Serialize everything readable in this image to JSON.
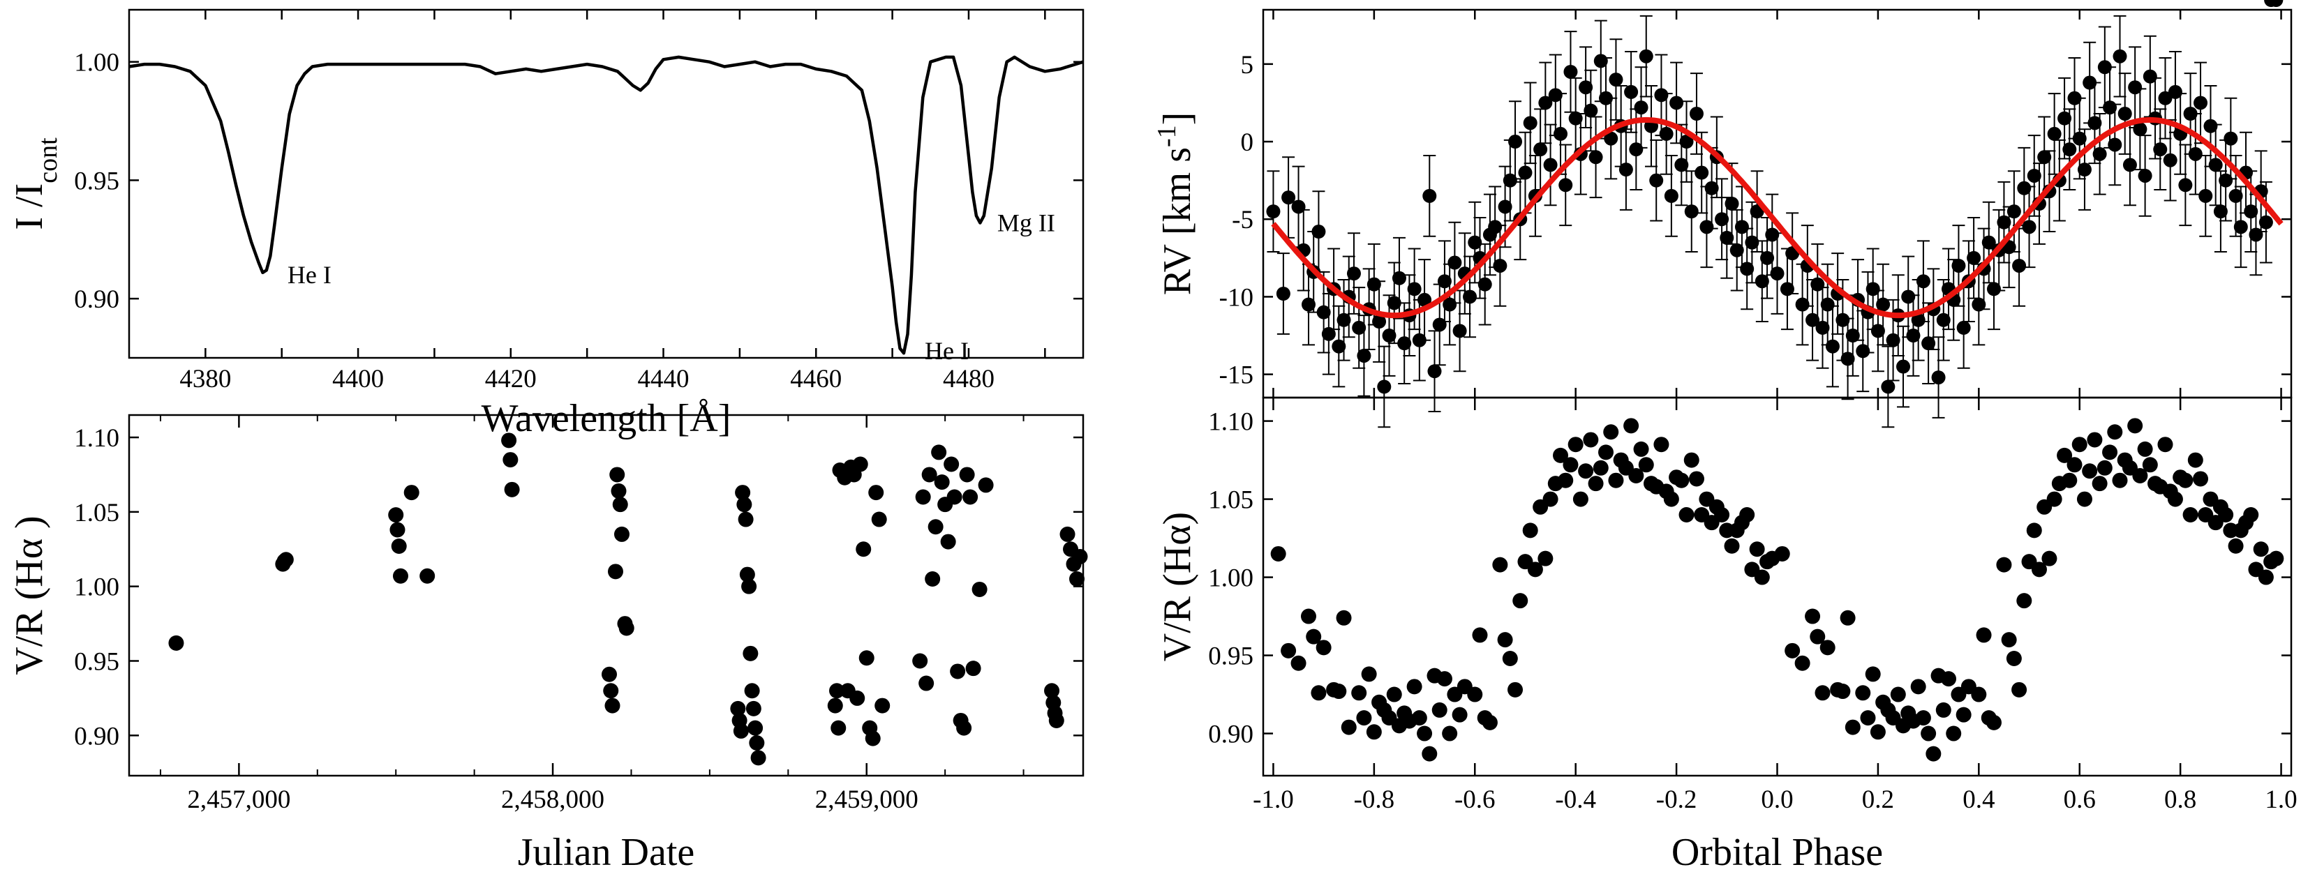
{
  "chart_data": [
    {
      "panel": "spectrum",
      "type": "line",
      "xlabel": "Wavelength [Å]",
      "ylabel": "I /I",
      "ylabel_sub": "cont",
      "xlim": [
        4370,
        4495
      ],
      "ylim": [
        0.875,
        1.022
      ],
      "xticks": [
        4380,
        4390,
        4400,
        4410,
        4420,
        4430,
        4440,
        4450,
        4460,
        4470,
        4480,
        4490
      ],
      "xtick_labels": [
        "4380",
        "4400",
        "4420",
        "4440",
        "4460",
        "4480"
      ],
      "xtick_label_values": [
        4380,
        4400,
        4420,
        4440,
        4460,
        4480
      ],
      "yticks": [
        0.9,
        0.95,
        1.0
      ],
      "ytick_labels": [
        "0.90",
        "0.95",
        "1.00"
      ],
      "annotations": [
        {
          "text": "He I",
          "x": 4388,
          "y": 0.91
        },
        {
          "text": "He I",
          "x": 4471.5,
          "y": 0.878
        },
        {
          "text": "Mg II",
          "x": 4481,
          "y": 0.932
        }
      ],
      "x": [
        4370,
        4372,
        4374,
        4376,
        4378,
        4380,
        4382,
        4383,
        4384,
        4385,
        4386,
        4387,
        4387.5,
        4388,
        4388.5,
        4389,
        4390,
        4391,
        4392,
        4393,
        4394,
        4396,
        4398,
        4400,
        4402,
        4404,
        4406,
        4408,
        4410,
        4412,
        4414,
        4416,
        4418,
        4420,
        4422,
        4424,
        4426,
        4428,
        4430,
        4432,
        4434,
        4435,
        4436,
        4437,
        4438,
        4439,
        4440,
        4442,
        4444,
        4446,
        4448,
        4450,
        4452,
        4454,
        4456,
        4458,
        4460,
        4462,
        4464,
        4466,
        4467,
        4468,
        4469,
        4470,
        4470.5,
        4471,
        4471.5,
        4472,
        4472.5,
        4473,
        4474,
        4475,
        4476,
        4477,
        4478,
        4479,
        4480,
        4480.5,
        4481,
        4481.5,
        4482,
        4483,
        4484,
        4485,
        4486,
        4488,
        4490,
        4492,
        4494,
        4495
      ],
      "y": [
        0.998,
        0.999,
        0.999,
        0.998,
        0.996,
        0.99,
        0.975,
        0.962,
        0.948,
        0.935,
        0.924,
        0.915,
        0.911,
        0.912,
        0.918,
        0.93,
        0.955,
        0.978,
        0.99,
        0.995,
        0.998,
        0.999,
        0.999,
        0.999,
        0.999,
        0.999,
        0.999,
        0.999,
        0.999,
        0.999,
        0.999,
        0.998,
        0.995,
        0.996,
        0.997,
        0.996,
        0.997,
        0.998,
        0.999,
        0.998,
        0.996,
        0.993,
        0.99,
        0.988,
        0.991,
        0.997,
        1.001,
        1.002,
        1.001,
        1.0,
        0.998,
        0.999,
        1.0,
        0.998,
        0.999,
        0.999,
        0.997,
        0.996,
        0.994,
        0.988,
        0.975,
        0.955,
        0.93,
        0.905,
        0.89,
        0.879,
        0.877,
        0.885,
        0.91,
        0.945,
        0.985,
        1.0,
        1.001,
        1.002,
        1.002,
        0.99,
        0.96,
        0.945,
        0.935,
        0.932,
        0.935,
        0.955,
        0.985,
        1.0,
        1.002,
        0.998,
        0.996,
        0.997,
        0.999,
        1.0
      ]
    },
    {
      "panel": "radial-velocity",
      "type": "scatter",
      "ylabel": "RV [km s",
      "ylabel_sup": "-1",
      "ylabel_close": "]",
      "xlim": [
        -1.02,
        1.02
      ],
      "ylim": [
        -16.5,
        8.5
      ],
      "yticks": [
        -15,
        -10,
        -5,
        0,
        5
      ],
      "ytick_labels": [
        "-15",
        "-10",
        "-5",
        "0",
        "5"
      ],
      "fit": {
        "name": "",
        "color": "#e8150f",
        "model": "sinusoid",
        "mean": -4.9,
        "amplitude": 6.3,
        "phase_of_max": 0.74
      },
      "points": {
        "phase": [
          -1.0,
          -0.98,
          -0.97,
          -0.95,
          -0.94,
          -0.93,
          -0.92,
          -0.91,
          -0.9,
          -0.89,
          -0.88,
          -0.87,
          -0.86,
          -0.85,
          -0.84,
          -0.83,
          -0.82,
          -0.81,
          -0.8,
          -0.79,
          -0.78,
          -0.77,
          -0.76,
          -0.75,
          -0.74,
          -0.73,
          -0.72,
          -0.71,
          -0.7,
          -0.69,
          -0.68,
          -0.67,
          -0.66,
          -0.65,
          -0.64,
          -0.63,
          -0.62,
          -0.61,
          -0.6,
          -0.59,
          -0.58,
          -0.57,
          -0.56,
          -0.55,
          -0.54,
          -0.53,
          -0.52,
          -0.51,
          -0.5,
          -0.49,
          -0.48,
          -0.47,
          -0.46,
          -0.45,
          -0.44,
          -0.43,
          -0.42,
          -0.41,
          -0.4,
          -0.39,
          -0.38,
          -0.37,
          -0.36,
          -0.35,
          -0.34,
          -0.33,
          -0.32,
          -0.31,
          -0.3,
          -0.29,
          -0.28,
          -0.27,
          -0.26,
          -0.25,
          -0.24,
          -0.23,
          -0.22,
          -0.21,
          -0.2,
          -0.19,
          -0.18,
          -0.17,
          -0.16,
          -0.15,
          -0.14,
          -0.13,
          -0.12,
          -0.11,
          -0.1,
          -0.09,
          -0.08,
          -0.07,
          -0.06,
          -0.05,
          -0.04,
          -0.03,
          -0.02,
          -0.01,
          0.0,
          0.02,
          0.03,
          0.05,
          0.06,
          0.07,
          0.08,
          0.09,
          0.1,
          0.11,
          0.12,
          0.13,
          0.14,
          0.15,
          0.16,
          0.17,
          0.18,
          0.19,
          0.2,
          0.21,
          0.22,
          0.23,
          0.24,
          0.25,
          0.26,
          0.27,
          0.28,
          0.29,
          0.3,
          0.31,
          0.32,
          0.33,
          0.34,
          0.35,
          0.36,
          0.37,
          0.38,
          0.39,
          0.4,
          0.41,
          0.42,
          0.43,
          0.44,
          0.45,
          0.46,
          0.47,
          0.48,
          0.49,
          0.5,
          0.51,
          0.52,
          0.53,
          0.54,
          0.55,
          0.56,
          0.57,
          0.58,
          0.59,
          0.6,
          0.61,
          0.62,
          0.63,
          0.64,
          0.65,
          0.66,
          0.67,
          0.68,
          0.69,
          0.7,
          0.71,
          0.72,
          0.73,
          0.74,
          0.75,
          0.76,
          0.77,
          0.78,
          0.79,
          0.8,
          0.81,
          0.82,
          0.83,
          0.84,
          0.85,
          0.86,
          0.87,
          0.88,
          0.89,
          0.9,
          0.91,
          0.92,
          0.93,
          0.94,
          0.95,
          0.96,
          0.97,
          0.98,
          0.99
        ],
        "rv": [
          -4.5,
          -9.8,
          -3.6,
          -4.2,
          -7.0,
          -10.5,
          -8.4,
          -5.8,
          -11.0,
          -12.4,
          -9.5,
          -13.2,
          -11.5,
          -10.0,
          -8.5,
          -12.0,
          -13.8,
          -10.8,
          -9.2,
          -11.6,
          -15.8,
          -12.5,
          -10.4,
          -8.8,
          -13.0,
          -11.2,
          -9.5,
          -12.8,
          -10.2,
          -3.5,
          -14.8,
          -11.8,
          -9.0,
          -10.5,
          -7.8,
          -12.2,
          -8.5,
          -10.0,
          -6.5,
          -7.5,
          -9.2,
          -6.0,
          -5.5,
          -8.0,
          -4.2,
          -2.5,
          0.0,
          -5.0,
          -2.0,
          1.2,
          -3.5,
          -0.5,
          2.5,
          -1.5,
          3.0,
          0.5,
          -2.8,
          4.5,
          1.5,
          -0.8,
          3.5,
          2.0,
          -1.0,
          5.2,
          2.8,
          0.2,
          4.0,
          1.0,
          -1.8,
          3.2,
          -0.5,
          2.2,
          5.5,
          1.0,
          -2.5,
          3.0,
          0.5,
          -3.5,
          2.5,
          -1.5,
          0.0,
          -4.5,
          1.8,
          -2.0,
          -5.5,
          -3.0,
          -1.0,
          -5.0,
          -6.2,
          -4.0,
          -7.0,
          -5.5,
          -8.2,
          -6.5,
          -4.5,
          -9.0,
          -7.5,
          -6.0,
          -8.5,
          -9.5,
          -7.2,
          -10.5,
          -8.0,
          -11.5,
          -9.2,
          -12.0,
          -10.5,
          -13.2,
          -9.8,
          -11.5,
          -14.0,
          -12.5,
          -10.2,
          -13.5,
          -11.0,
          -9.5,
          -12.2,
          -10.5,
          -15.8,
          -12.8,
          -11.2,
          -14.5,
          -10.0,
          -12.5,
          -11.5,
          -9.0,
          -13.0,
          -10.8,
          -15.2,
          -11.5,
          -9.5,
          -10.2,
          -8.0,
          -12.0,
          -9.0,
          -7.5,
          -10.5,
          -8.2,
          -6.5,
          -9.5,
          -7.0,
          -5.2,
          -6.8,
          -4.5,
          -8.0,
          -3.0,
          -5.5,
          -2.2,
          -4.0,
          -1.0,
          -3.2,
          0.5,
          -2.5,
          1.5,
          -0.5,
          2.8,
          0.2,
          -1.8,
          3.8,
          1.2,
          -0.8,
          4.8,
          2.2,
          -0.2,
          5.5,
          1.8,
          -1.5,
          3.5,
          0.8,
          -2.2,
          4.2,
          1.5,
          -0.5,
          2.8,
          -1.2,
          3.2,
          0.5,
          -2.8,
          1.8,
          -0.8,
          2.5,
          -3.5,
          1.0,
          -1.5,
          -4.5,
          -2.5,
          0.2,
          -3.5,
          -5.5,
          -2.0,
          -4.5,
          -6.0,
          -3.2,
          -5.2
        ],
        "error": 2.6
      }
    },
    {
      "panel": "vr-vs-date",
      "type": "scatter",
      "xlabel": "Julian Date",
      "ylabel": "V/R (Hα )",
      "xlim": [
        2456650,
        2459690
      ],
      "ylim": [
        0.873,
        1.115
      ],
      "xticks": [
        2457000,
        2458000,
        2459000
      ],
      "xminor": [
        2456750,
        2457250,
        2457500,
        2457750,
        2458250,
        2458500,
        2458750,
        2459250,
        2459500
      ],
      "xtick_labels": [
        "2,457,000",
        "2,458,000",
        "2,459,000"
      ],
      "yticks": [
        0.9,
        0.95,
        1.0,
        1.05,
        1.1
      ],
      "ytick_labels": [
        "0.90",
        "0.95",
        "1.00",
        "1.05",
        "1.10"
      ],
      "points": {
        "x": [
          2456800,
          2457140,
          2457145,
          2457150,
          2457500,
          2457505,
          2457510,
          2457515,
          2457550,
          2457600,
          2457860,
          2457865,
          2457870,
          2458180,
          2458185,
          2458190,
          2458200,
          2458205,
          2458210,
          2458215,
          2458220,
          2458230,
          2458235,
          2458590,
          2458595,
          2458600,
          2458605,
          2458610,
          2458615,
          2458620,
          2458625,
          2458630,
          2458635,
          2458640,
          2458645,
          2458650,
          2458655,
          2458900,
          2458905,
          2458910,
          2458915,
          2458930,
          2458940,
          2458950,
          2458960,
          2458970,
          2458980,
          2458990,
          2459000,
          2459010,
          2459020,
          2459030,
          2459040,
          2459050,
          2459170,
          2459180,
          2459190,
          2459200,
          2459210,
          2459220,
          2459230,
          2459240,
          2459250,
          2459260,
          2459270,
          2459280,
          2459290,
          2459300,
          2459310,
          2459320,
          2459330,
          2459340,
          2459360,
          2459380,
          2459590,
          2459595,
          2459600,
          2459605,
          2459640,
          2459650,
          2459660,
          2459670,
          2459680
        ],
        "y": [
          0.962,
          1.015,
          1.017,
          1.018,
          1.048,
          1.038,
          1.027,
          1.007,
          1.063,
          1.007,
          1.098,
          1.085,
          1.065,
          0.941,
          0.93,
          0.92,
          1.01,
          1.075,
          1.064,
          1.055,
          1.035,
          0.975,
          0.972,
          0.918,
          0.91,
          0.903,
          1.063,
          1.055,
          1.045,
          1.008,
          1.0,
          0.955,
          0.93,
          0.918,
          0.905,
          0.895,
          0.885,
          0.92,
          0.93,
          0.905,
          1.078,
          1.073,
          0.93,
          1.08,
          1.075,
          0.925,
          1.082,
          1.025,
          0.952,
          0.905,
          0.898,
          1.063,
          1.045,
          0.92,
          0.95,
          1.06,
          0.935,
          1.075,
          1.005,
          1.04,
          1.09,
          1.07,
          1.055,
          1.03,
          1.082,
          1.06,
          0.943,
          0.91,
          0.905,
          1.075,
          1.06,
          0.945,
          0.998,
          1.068,
          0.93,
          0.922,
          0.915,
          0.91,
          1.035,
          1.025,
          1.015,
          1.005,
          1.02
        ]
      }
    },
    {
      "panel": "vr-vs-phase",
      "type": "scatter",
      "xlabel": "Orbital Phase",
      "ylabel": "V/R (Hα)",
      "xlim": [
        -1.02,
        1.02
      ],
      "ylim": [
        0.873,
        1.115
      ],
      "xticks": [
        -1.0,
        -0.8,
        -0.6,
        -0.4,
        -0.2,
        0.0,
        0.2,
        0.4,
        0.6,
        0.8,
        1.0
      ],
      "xtick_labels": [
        "-1.0",
        "-0.8",
        "-0.6",
        "-0.4",
        "-0.2",
        "0.0",
        "0.2",
        "0.4",
        "0.6",
        "0.8",
        "1.0"
      ],
      "yticks": [
        0.9,
        0.95,
        1.0,
        1.05,
        1.1
      ],
      "ytick_labels": [
        "0.90",
        "0.95",
        "1.00",
        "1.05",
        "1.10"
      ],
      "points": {
        "phase": [
          -0.99,
          -0.97,
          -0.95,
          -0.93,
          -0.92,
          -0.91,
          -0.9,
          -0.88,
          -0.87,
          -0.86,
          -0.85,
          -0.83,
          -0.82,
          -0.81,
          -0.8,
          -0.79,
          -0.78,
          -0.77,
          -0.76,
          -0.75,
          -0.74,
          -0.73,
          -0.72,
          -0.71,
          -0.7,
          -0.69,
          -0.68,
          -0.67,
          -0.66,
          -0.65,
          -0.64,
          -0.63,
          -0.62,
          -0.6,
          -0.59,
          -0.58,
          -0.57,
          -0.55,
          -0.54,
          -0.53,
          -0.52,
          -0.51,
          -0.5,
          -0.49,
          -0.48,
          -0.47,
          -0.46,
          -0.45,
          -0.44,
          -0.43,
          -0.42,
          -0.41,
          -0.4,
          -0.39,
          -0.38,
          -0.37,
          -0.36,
          -0.35,
          -0.34,
          -0.33,
          -0.32,
          -0.31,
          -0.3,
          -0.29,
          -0.28,
          -0.27,
          -0.26,
          -0.25,
          -0.24,
          -0.23,
          -0.22,
          -0.21,
          -0.2,
          -0.19,
          -0.18,
          -0.17,
          -0.16,
          -0.15,
          -0.14,
          -0.13,
          -0.12,
          -0.11,
          -0.1,
          -0.09,
          -0.08,
          -0.07,
          -0.06,
          -0.05,
          -0.04,
          -0.03,
          -0.02,
          -0.01
        ],
        "vr": [
          1.015,
          0.953,
          0.945,
          0.975,
          0.962,
          0.926,
          0.955,
          0.928,
          0.927,
          0.974,
          0.904,
          0.926,
          0.91,
          0.938,
          0.901,
          0.92,
          0.915,
          0.91,
          0.925,
          0.905,
          0.913,
          0.908,
          0.93,
          0.91,
          0.9,
          0.887,
          0.937,
          0.915,
          0.935,
          0.9,
          0.925,
          0.912,
          0.93,
          0.925,
          0.963,
          0.91,
          0.907,
          1.008,
          0.96,
          0.948,
          0.928,
          0.985,
          1.01,
          1.03,
          1.005,
          1.045,
          1.012,
          1.05,
          1.06,
          1.078,
          1.062,
          1.072,
          1.085,
          1.05,
          1.068,
          1.088,
          1.06,
          1.07,
          1.08,
          1.093,
          1.062,
          1.075,
          1.07,
          1.097,
          1.065,
          1.082,
          1.072,
          1.06,
          1.058,
          1.085,
          1.055,
          1.05,
          1.064,
          1.062,
          1.04,
          1.075,
          1.063,
          1.04,
          1.05,
          1.035,
          1.045,
          1.04,
          1.03,
          1.02,
          1.03,
          1.035,
          1.04,
          1.005,
          1.018,
          1.0,
          1.01,
          1.012
        ]
      }
    }
  ]
}
